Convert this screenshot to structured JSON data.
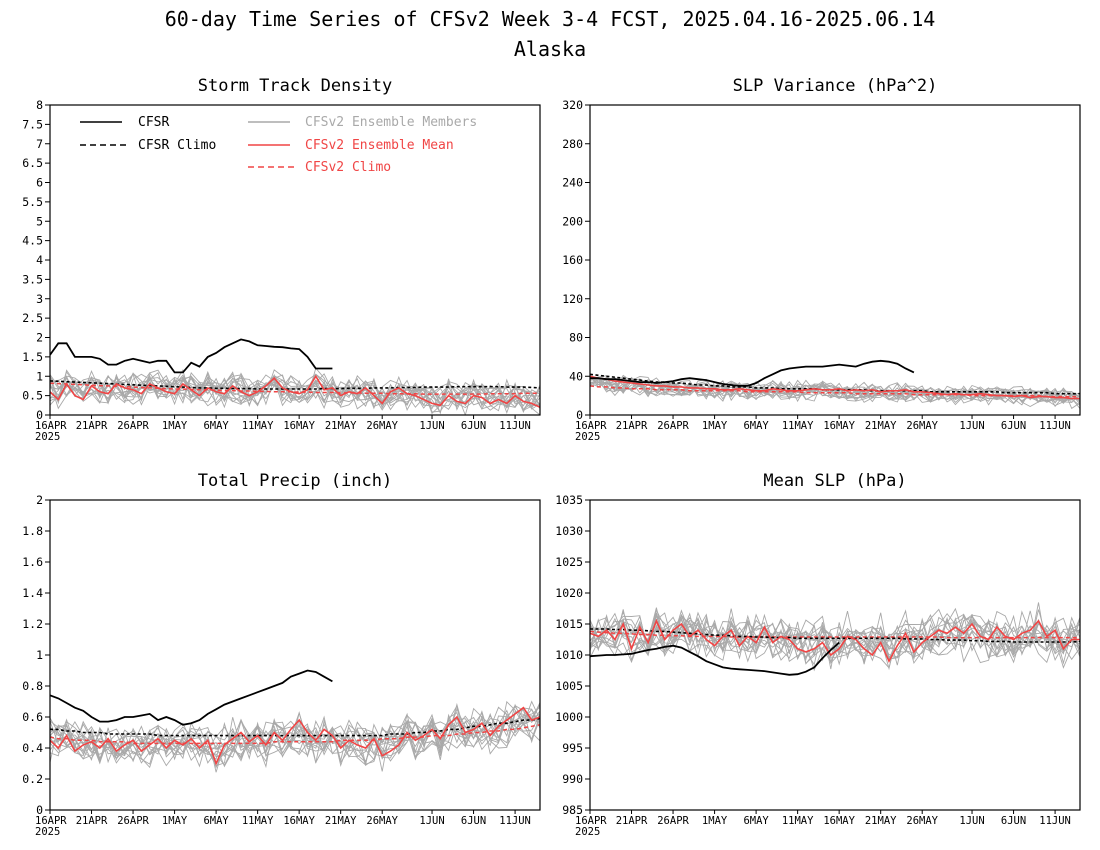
{
  "figure": {
    "title_line1": "60-day Time Series of CFSv2 Week 3-4 FCST, 2025.04.16-2025.06.14",
    "title_line2": "Alaska"
  },
  "colors": {
    "cfsr": "#000000",
    "members": "#a9a9a9",
    "ens_mean": "#f04545",
    "cfsv2_climo": "#f04545"
  },
  "legend": {
    "cfsr": "CFSR",
    "cfsr_climo": "CFSR Climo",
    "members": "CFSv2 Ensemble Members",
    "ens_mean": "CFSv2 Ensemble Mean",
    "cfsv2_climo": "CFSv2 Climo"
  },
  "x_axis": {
    "day_count": 60,
    "tick_labels": [
      "16APR",
      "21APR",
      "26APR",
      "1MAY",
      "6MAY",
      "11MAY",
      "16MAY",
      "21MAY",
      "26MAY",
      "1JUN",
      "6JUN",
      "11JUN"
    ],
    "tick_days": [
      0,
      5,
      10,
      15,
      20,
      25,
      30,
      35,
      40,
      46,
      51,
      56
    ],
    "year_label": "2025"
  },
  "chart_data": [
    {
      "type": "line",
      "title": "Storm Track Density",
      "ylim": [
        0,
        8
      ],
      "yticks": [
        "0",
        "0.5",
        "1",
        "1.5",
        "2",
        "2.5",
        "3",
        "3.5",
        "4",
        "4.5",
        "5",
        "5.5",
        "6",
        "6.5",
        "7",
        "7.5",
        "8"
      ],
      "ytick_values": [
        0,
        0.5,
        1,
        1.5,
        2,
        2.5,
        3,
        3.5,
        4,
        4.5,
        5,
        5.5,
        6,
        6.5,
        7,
        7.5,
        8
      ],
      "cfsr": [
        1.55,
        1.85,
        1.85,
        1.5,
        1.5,
        1.5,
        1.45,
        1.3,
        1.3,
        1.4,
        1.45,
        1.4,
        1.35,
        1.4,
        1.4,
        1.1,
        1.1,
        1.35,
        1.25,
        1.5,
        1.6,
        1.75,
        1.85,
        1.95,
        1.9,
        1.8,
        1.78,
        1.76,
        1.75,
        1.72,
        1.7,
        1.5,
        1.2,
        1.2,
        1.2
      ],
      "cfsr_climo": [
        0.88,
        0.87,
        0.86,
        0.85,
        0.84,
        0.83,
        0.82,
        0.81,
        0.8,
        0.79,
        0.78,
        0.77,
        0.76,
        0.75,
        0.74,
        0.73,
        0.72,
        0.71,
        0.7,
        0.7,
        0.69,
        0.69,
        0.68,
        0.68,
        0.68,
        0.67,
        0.67,
        0.67,
        0.67,
        0.67,
        0.67,
        0.67,
        0.67,
        0.68,
        0.68,
        0.68,
        0.69,
        0.69,
        0.69,
        0.7,
        0.7,
        0.7,
        0.71,
        0.71,
        0.71,
        0.72,
        0.72,
        0.72,
        0.72,
        0.73,
        0.73,
        0.73,
        0.73,
        0.73,
        0.73,
        0.72,
        0.72,
        0.72,
        0.71,
        0.7
      ],
      "ens_mean": [
        0.6,
        0.4,
        0.8,
        0.5,
        0.4,
        0.75,
        0.6,
        0.55,
        0.8,
        0.7,
        0.65,
        0.55,
        0.8,
        0.7,
        0.6,
        0.55,
        0.8,
        0.65,
        0.5,
        0.7,
        0.6,
        0.55,
        0.75,
        0.6,
        0.5,
        0.6,
        0.75,
        0.95,
        0.7,
        0.6,
        0.55,
        0.65,
        1.0,
        0.65,
        0.7,
        0.5,
        0.6,
        0.55,
        0.7,
        0.5,
        0.3,
        0.6,
        0.7,
        0.55,
        0.5,
        0.4,
        0.3,
        0.25,
        0.5,
        0.35,
        0.3,
        0.5,
        0.45,
        0.3,
        0.4,
        0.3,
        0.5,
        0.35,
        0.3,
        0.2
      ],
      "cfsv2_climo": [
        0.82,
        0.81,
        0.8,
        0.79,
        0.78,
        0.77,
        0.76,
        0.75,
        0.74,
        0.73,
        0.72,
        0.71,
        0.7,
        0.69,
        0.68,
        0.67,
        0.67,
        0.66,
        0.65,
        0.65,
        0.64,
        0.63,
        0.63,
        0.62,
        0.62,
        0.61,
        0.61,
        0.6,
        0.6,
        0.6,
        0.59,
        0.59,
        0.58,
        0.58,
        0.58,
        0.57,
        0.57,
        0.57,
        0.56,
        0.56,
        0.56,
        0.55,
        0.55,
        0.55,
        0.55,
        0.54,
        0.54,
        0.54,
        0.54,
        0.54,
        0.54,
        0.54,
        0.54,
        0.55,
        0.55,
        0.55,
        0.55,
        0.56,
        0.56,
        0.56
      ],
      "member_count": 16,
      "member_spread": 0.32
    },
    {
      "type": "line",
      "title": "SLP Variance (hPa^2)",
      "ylim": [
        0,
        320
      ],
      "yticks": [
        "0",
        "40",
        "80",
        "120",
        "160",
        "200",
        "240",
        "280",
        "320"
      ],
      "ytick_values": [
        0,
        40,
        80,
        120,
        160,
        200,
        240,
        280,
        320
      ],
      "cfsr": [
        38,
        38,
        37,
        37,
        36,
        35,
        34,
        34,
        33,
        34,
        35,
        37,
        38,
        37,
        36,
        34,
        32,
        31,
        30,
        30,
        33,
        38,
        42,
        46,
        48,
        49,
        50,
        50,
        50,
        51,
        52,
        51,
        50,
        53,
        55,
        56,
        55,
        53,
        48,
        44
      ],
      "cfsr_climo": [
        42,
        41,
        40,
        39,
        38,
        37,
        36,
        35,
        34,
        34,
        33,
        33,
        32,
        31,
        31,
        30,
        30,
        29,
        29,
        29,
        28,
        28,
        28,
        27,
        27,
        27,
        27,
        27,
        26,
        26,
        26,
        26,
        26,
        26,
        25,
        25,
        25,
        25,
        25,
        25,
        25,
        24,
        24,
        24,
        24,
        24,
        24,
        24,
        24,
        24,
        23,
        23,
        23,
        23,
        23,
        23,
        22,
        22,
        22,
        22
      ],
      "ens_mean": [
        40,
        38,
        37,
        35,
        34,
        33,
        32,
        31,
        30,
        30,
        29,
        29,
        28,
        28,
        27,
        27,
        26,
        26,
        27,
        26,
        25,
        25,
        27,
        26,
        25,
        25,
        26,
        27,
        26,
        26,
        27,
        25,
        26,
        25,
        26,
        24,
        25,
        25,
        26,
        24,
        24,
        23,
        22,
        21,
        22,
        21,
        21,
        22,
        21,
        20,
        20,
        19,
        20,
        18,
        19,
        19,
        18,
        18,
        17,
        17
      ],
      "cfsv2_climo": [
        30,
        29,
        29,
        28,
        28,
        27,
        27,
        27,
        26,
        26,
        26,
        26,
        25,
        25,
        25,
        25,
        25,
        25,
        25,
        24,
        24,
        24,
        24,
        24,
        24,
        24,
        23,
        23,
        23,
        23,
        23,
        23,
        22,
        22,
        22,
        22,
        22,
        22,
        22,
        21,
        21,
        21,
        21,
        21,
        21,
        21,
        20,
        20,
        20,
        20,
        20,
        20,
        20,
        20,
        20,
        19,
        19,
        19,
        19,
        19
      ],
      "member_count": 16,
      "member_spread": 8
    },
    {
      "type": "line",
      "title": "Total Precip (inch)",
      "ylim": [
        0,
        2
      ],
      "yticks": [
        "0",
        "0.2",
        "0.4",
        "0.6",
        "0.8",
        "1",
        "1.2",
        "1.4",
        "1.6",
        "1.8",
        "2"
      ],
      "ytick_values": [
        0,
        0.2,
        0.4,
        0.6,
        0.8,
        1,
        1.2,
        1.4,
        1.6,
        1.8,
        2
      ],
      "cfsr": [
        0.74,
        0.72,
        0.69,
        0.66,
        0.64,
        0.6,
        0.57,
        0.57,
        0.58,
        0.6,
        0.6,
        0.61,
        0.62,
        0.58,
        0.6,
        0.58,
        0.55,
        0.56,
        0.58,
        0.62,
        0.65,
        0.68,
        0.7,
        0.72,
        0.74,
        0.76,
        0.78,
        0.8,
        0.82,
        0.86,
        0.88,
        0.9,
        0.89,
        0.86,
        0.83
      ],
      "cfsr_climo": [
        0.52,
        0.52,
        0.51,
        0.51,
        0.5,
        0.5,
        0.5,
        0.49,
        0.49,
        0.49,
        0.49,
        0.49,
        0.49,
        0.48,
        0.48,
        0.48,
        0.48,
        0.48,
        0.48,
        0.48,
        0.48,
        0.48,
        0.48,
        0.48,
        0.48,
        0.48,
        0.48,
        0.48,
        0.48,
        0.48,
        0.48,
        0.48,
        0.48,
        0.48,
        0.48,
        0.48,
        0.48,
        0.48,
        0.48,
        0.48,
        0.48,
        0.49,
        0.49,
        0.49,
        0.5,
        0.5,
        0.51,
        0.51,
        0.52,
        0.52,
        0.53,
        0.54,
        0.54,
        0.55,
        0.56,
        0.56,
        0.57,
        0.58,
        0.58,
        0.59
      ],
      "ens_mean": [
        0.45,
        0.4,
        0.48,
        0.38,
        0.42,
        0.44,
        0.4,
        0.46,
        0.38,
        0.42,
        0.45,
        0.38,
        0.42,
        0.46,
        0.4,
        0.45,
        0.42,
        0.46,
        0.4,
        0.45,
        0.3,
        0.42,
        0.46,
        0.5,
        0.44,
        0.48,
        0.42,
        0.5,
        0.45,
        0.52,
        0.58,
        0.5,
        0.45,
        0.52,
        0.48,
        0.4,
        0.45,
        0.42,
        0.4,
        0.46,
        0.35,
        0.38,
        0.42,
        0.5,
        0.45,
        0.48,
        0.52,
        0.46,
        0.55,
        0.6,
        0.5,
        0.52,
        0.56,
        0.48,
        0.54,
        0.58,
        0.62,
        0.66,
        0.58,
        0.6
      ],
      "cfsv2_climo": [
        0.47,
        0.46,
        0.46,
        0.45,
        0.45,
        0.45,
        0.44,
        0.44,
        0.44,
        0.44,
        0.43,
        0.43,
        0.43,
        0.43,
        0.43,
        0.43,
        0.43,
        0.43,
        0.43,
        0.43,
        0.43,
        0.43,
        0.43,
        0.43,
        0.43,
        0.43,
        0.43,
        0.44,
        0.44,
        0.44,
        0.44,
        0.44,
        0.44,
        0.44,
        0.44,
        0.45,
        0.45,
        0.45,
        0.45,
        0.45,
        0.46,
        0.46,
        0.46,
        0.47,
        0.47,
        0.47,
        0.48,
        0.48,
        0.48,
        0.49,
        0.49,
        0.5,
        0.5,
        0.51,
        0.51,
        0.52,
        0.52,
        0.53,
        0.54,
        0.55
      ],
      "member_count": 16,
      "member_spread": 0.11
    },
    {
      "type": "line",
      "title": "Mean SLP (hPa)",
      "ylim": [
        985,
        1035
      ],
      "yticks": [
        "985",
        "990",
        "995",
        "1000",
        "1005",
        "1010",
        "1015",
        "1020",
        "1025",
        "1030",
        "1035"
      ],
      "ytick_values": [
        985,
        990,
        995,
        1000,
        1005,
        1010,
        1015,
        1020,
        1025,
        1030,
        1035
      ],
      "cfsr": [
        1009.8,
        1009.9,
        1010.0,
        1010.0,
        1010.1,
        1010.2,
        1010.5,
        1010.8,
        1011.0,
        1011.3,
        1011.5,
        1011.2,
        1010.5,
        1009.8,
        1009.0,
        1008.5,
        1008.0,
        1007.8,
        1007.7,
        1007.6,
        1007.5,
        1007.4,
        1007.2,
        1007.0,
        1006.8,
        1006.9,
        1007.3,
        1008.0,
        1009.5,
        1010.8,
        1012.0
      ],
      "cfsr_climo": [
        1014.2,
        1014.2,
        1014.2,
        1014.1,
        1014.1,
        1014.0,
        1014.0,
        1013.9,
        1013.8,
        1013.8,
        1013.7,
        1013.6,
        1013.5,
        1013.4,
        1013.3,
        1013.2,
        1013.2,
        1013.1,
        1013.0,
        1013.0,
        1012.9,
        1012.9,
        1012.8,
        1012.8,
        1012.8,
        1012.7,
        1012.7,
        1012.7,
        1012.7,
        1012.7,
        1012.7,
        1012.7,
        1012.7,
        1012.7,
        1012.7,
        1012.7,
        1012.7,
        1012.7,
        1012.6,
        1012.6,
        1012.6,
        1012.5,
        1012.5,
        1012.4,
        1012.4,
        1012.4,
        1012.3,
        1012.3,
        1012.2,
        1012.2,
        1012.2,
        1012.1,
        1012.1,
        1012.1,
        1012.1,
        1012.1,
        1012.1,
        1012.1,
        1012.1,
        1012.2
      ],
      "ens_mean": [
        1013.5,
        1013.0,
        1014.0,
        1012.5,
        1015.0,
        1011.0,
        1014.5,
        1012.0,
        1015.5,
        1012.5,
        1014.0,
        1015.0,
        1013.0,
        1014.0,
        1012.5,
        1011.5,
        1013.0,
        1014.0,
        1011.5,
        1013.0,
        1012.0,
        1014.5,
        1012.0,
        1013.0,
        1012.5,
        1011.0,
        1010.5,
        1011.0,
        1012.0,
        1010.0,
        1011.0,
        1013.0,
        1012.5,
        1011.0,
        1010.0,
        1012.0,
        1009.0,
        1011.5,
        1013.5,
        1010.5,
        1012.0,
        1013.0,
        1014.0,
        1013.5,
        1014.5,
        1013.5,
        1015.0,
        1013.0,
        1012.5,
        1014.5,
        1013.0,
        1012.5,
        1013.5,
        1014.0,
        1015.5,
        1013.0,
        1014.0,
        1011.0,
        1012.5,
        1012.5
      ],
      "cfsv2_climo": [
        1013.8,
        1013.7,
        1013.6,
        1013.5,
        1013.5,
        1013.4,
        1013.3,
        1013.3,
        1013.2,
        1013.2,
        1013.1,
        1013.1,
        1013.0,
        1013.0,
        1013.0,
        1013.0,
        1013.0,
        1012.9,
        1012.9,
        1012.9,
        1012.9,
        1012.9,
        1012.9,
        1012.9,
        1012.9,
        1012.9,
        1012.9,
        1012.9,
        1012.9,
        1012.9,
        1012.9,
        1012.9,
        1012.9,
        1012.9,
        1012.9,
        1012.9,
        1012.9,
        1012.9,
        1012.9,
        1012.9,
        1012.9,
        1012.9,
        1012.9,
        1012.8,
        1012.8,
        1012.8,
        1012.8,
        1012.8,
        1012.8,
        1012.8,
        1012.8,
        1012.8,
        1012.8,
        1012.8,
        1012.8,
        1012.8,
        1012.8,
        1012.8,
        1012.8,
        1012.8
      ],
      "member_count": 16,
      "member_spread": 3.0
    }
  ]
}
